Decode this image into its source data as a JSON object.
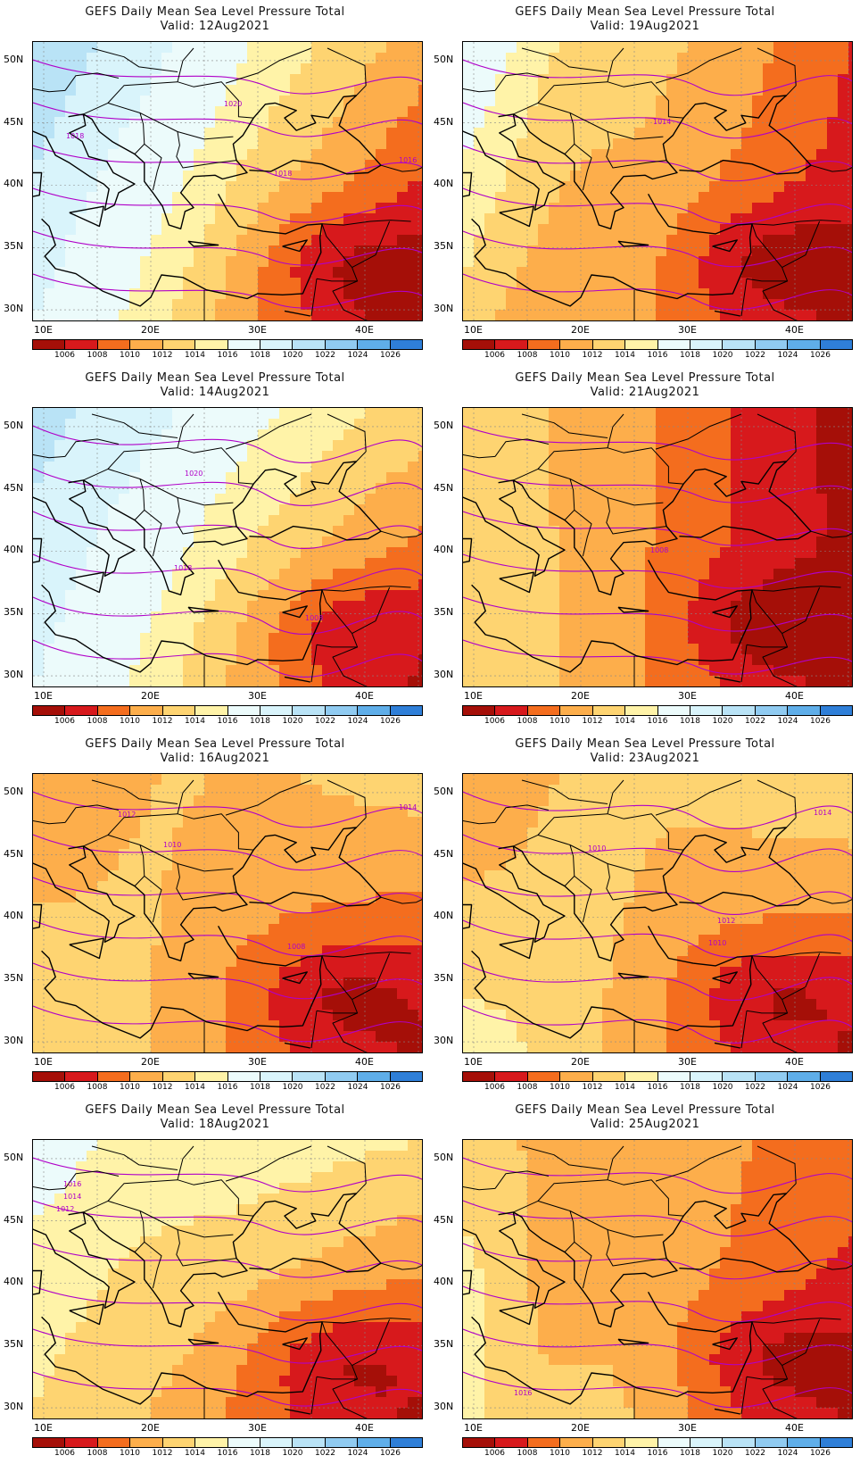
{
  "colors": {
    "palette": [
      "#a50f08",
      "#d7191c",
      "#f46d1e",
      "#fdae4b",
      "#fed471",
      "#fff3a8",
      "#ecfbfb",
      "#d9f4fb",
      "#b9e3f6",
      "#90cbf1",
      "#5faee9",
      "#2f7fd8"
    ],
    "contour": "#b000c8",
    "grid": "#888888"
  },
  "axes": {
    "lat_labels": [
      "50N",
      "45N",
      "40N",
      "35N",
      "30N"
    ],
    "lon_labels": [
      "10E",
      "20E",
      "30E",
      "40E"
    ]
  },
  "colorbar": {
    "labels": [
      "1006",
      "1008",
      "1010",
      "1012",
      "1014",
      "1016",
      "1018",
      "1020",
      "1022",
      "1024",
      "1026"
    ]
  },
  "panels": [
    {
      "title": "GEFS Daily Mean Sea Level Pressure Total",
      "valid": "Valid:  12Aug2021",
      "contour_labels": [
        "1020",
        "1018",
        "1018",
        "1016"
      ],
      "pressure_field": {
        "nw": 1022,
        "sw": 1018,
        "se": 1005,
        "ne": 1011,
        "ridge": 1018
      }
    },
    {
      "title": "GEFS Daily Mean Sea Level Pressure Total",
      "valid": "Valid:  19Aug2021",
      "contour_labels": [
        "1014"
      ],
      "pressure_field": {
        "nw": 1018,
        "sw": 1014,
        "se": 1006,
        "ne": 1008,
        "ridge": 1009
      }
    },
    {
      "title": "GEFS Daily Mean Sea Level Pressure Total",
      "valid": "Valid:  14Aug2021",
      "contour_labels": [
        "1020",
        "1018",
        "1008"
      ],
      "pressure_field": {
        "nw": 1021,
        "sw": 1018,
        "se": 1006,
        "ne": 1013,
        "ridge": 1018
      }
    },
    {
      "title": "GEFS Daily Mean Sea Level Pressure Total",
      "valid": "Valid:  21Aug2021",
      "contour_labels": [
        "1008"
      ],
      "pressure_field": {
        "nw": 1014,
        "sw": 1014,
        "se": 1006,
        "ne": 1005,
        "ridge": 1012
      }
    },
    {
      "title": "GEFS Daily Mean Sea Level Pressure Total",
      "valid": "Valid:  16Aug2021",
      "contour_labels": [
        "1012",
        "1010",
        "1008",
        "1014"
      ],
      "pressure_field": {
        "nw": 1010,
        "sw": 1014,
        "se": 1006,
        "ne": 1013,
        "ridge": 1014
      }
    },
    {
      "title": "GEFS Daily Mean Sea Level Pressure Total",
      "valid": "Valid:  23Aug2021",
      "contour_labels": [
        "1014",
        "1010",
        "1012",
        "1010"
      ],
      "pressure_field": {
        "nw": 1010,
        "sw": 1015,
        "se": 1006,
        "ne": 1014,
        "ridge": 1015
      }
    },
    {
      "title": "GEFS Daily Mean Sea Level Pressure Total",
      "valid": "Valid:  18Aug2021",
      "contour_labels": [
        "1016",
        "1014",
        "1012"
      ],
      "pressure_field": {
        "nw": 1017,
        "sw": 1014,
        "se": 1006,
        "ne": 1014,
        "ridge": 1013
      }
    },
    {
      "title": "GEFS Daily Mean Sea Level Pressure Total",
      "valid": "Valid:  25Aug2021",
      "contour_labels": [
        "1016"
      ],
      "pressure_field": {
        "nw": 1013,
        "sw": 1017,
        "se": 1006,
        "ne": 1009,
        "ridge": 1008
      }
    }
  ]
}
